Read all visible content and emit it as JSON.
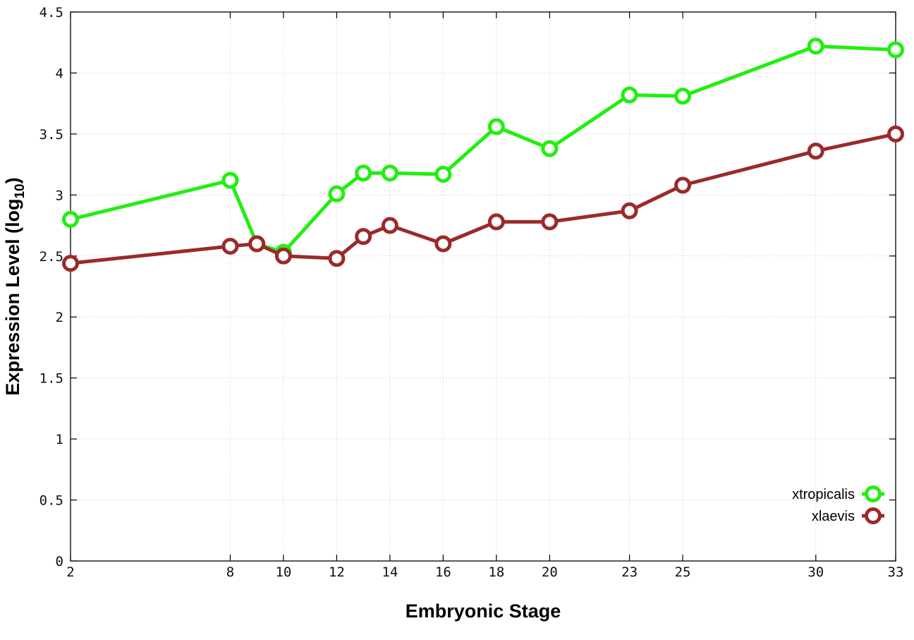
{
  "chart_data": {
    "type": "line",
    "x": [
      2,
      8,
      9,
      10,
      12,
      13,
      14,
      16,
      18,
      20,
      23,
      25,
      30,
      33
    ],
    "x_ticks": [
      2,
      8,
      10,
      12,
      14,
      16,
      18,
      20,
      23,
      25,
      30,
      33
    ],
    "x_tick_labels": [
      "2",
      "8",
      "10",
      "12",
      "14",
      "16",
      "18",
      "20",
      "23",
      "25",
      "30",
      "33"
    ],
    "y_ticks": [
      0,
      0.5,
      1,
      1.5,
      2,
      2.5,
      3,
      3.5,
      4,
      4.5
    ],
    "y_tick_labels": [
      "0",
      "0.5",
      "1",
      "1.5",
      "2",
      "2.5",
      "3",
      "3.5",
      "4",
      "4.5"
    ],
    "xlim": [
      2,
      33
    ],
    "ylim": [
      0,
      4.5
    ],
    "xlabel": "Embryonic Stage",
    "ylabel": "Expression Level (log",
    "ylabel_subscript": "10",
    "ylabel_suffix": ")",
    "grid": true,
    "legend_position": "bottom-right",
    "series": [
      {
        "name": "xtropicalis",
        "color": "#22ee11",
        "values": [
          2.8,
          3.12,
          2.6,
          2.53,
          3.01,
          3.18,
          3.18,
          3.17,
          3.56,
          3.38,
          3.82,
          3.81,
          4.22,
          4.19
        ]
      },
      {
        "name": "xlaevis",
        "color": "#9b2a2a",
        "values": [
          2.44,
          2.58,
          2.6,
          2.5,
          2.48,
          2.66,
          2.75,
          2.6,
          2.78,
          2.78,
          2.87,
          3.08,
          3.36,
          3.5
        ]
      }
    ]
  }
}
